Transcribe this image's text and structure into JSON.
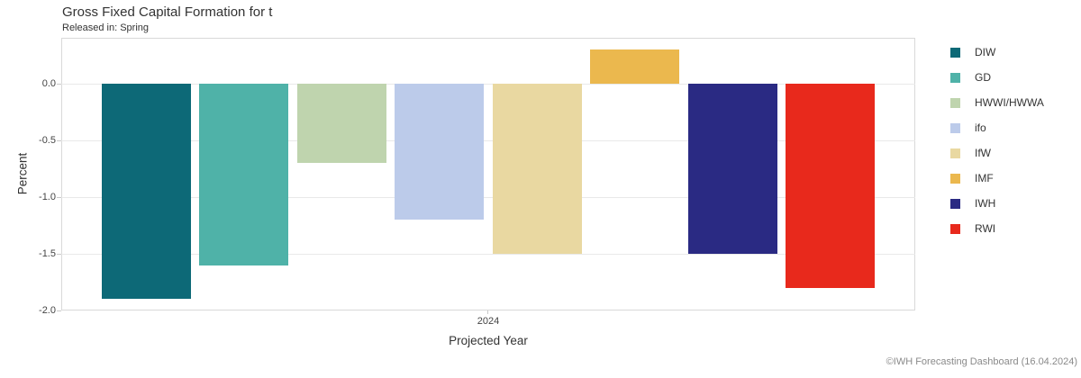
{
  "footer": {
    "credit": "©IWH Forecasting Dashboard (16.04.2024)"
  },
  "colors": {
    "grid": "#e9e9e9",
    "plot_border": "#d9d9d9",
    "tick": "#c9c9c9"
  },
  "chart_data": {
    "type": "bar",
    "title": "Gross Fixed Capital Formation for t",
    "subtitle": "Released in: Spring",
    "xlabel": "Projected Year",
    "ylabel": "Percent",
    "categories": [
      "2024"
    ],
    "series": [
      {
        "name": "DIW",
        "color": "#0d6977",
        "values": [
          -1.9
        ]
      },
      {
        "name": "GD",
        "color": "#4fb2a8",
        "values": [
          -1.6
        ]
      },
      {
        "name": "HWWI/HWWA",
        "color": "#bfd4ae",
        "values": [
          -0.7
        ]
      },
      {
        "name": "ifo",
        "color": "#bccbea",
        "values": [
          -1.2
        ]
      },
      {
        "name": "IfW",
        "color": "#e9d8a1",
        "values": [
          -1.5
        ]
      },
      {
        "name": "IMF",
        "color": "#ebb84e",
        "values": [
          0.3
        ]
      },
      {
        "name": "IWH",
        "color": "#2a2a83",
        "values": [
          -1.5
        ]
      },
      {
        "name": "RWI",
        "color": "#e8291c",
        "values": [
          -1.8
        ]
      }
    ],
    "ylim": [
      -2.0,
      0.4
    ],
    "yticks": [
      0.0,
      -0.5,
      -1.0,
      -1.5,
      -2.0
    ],
    "grid": true,
    "legend_position": "right"
  }
}
